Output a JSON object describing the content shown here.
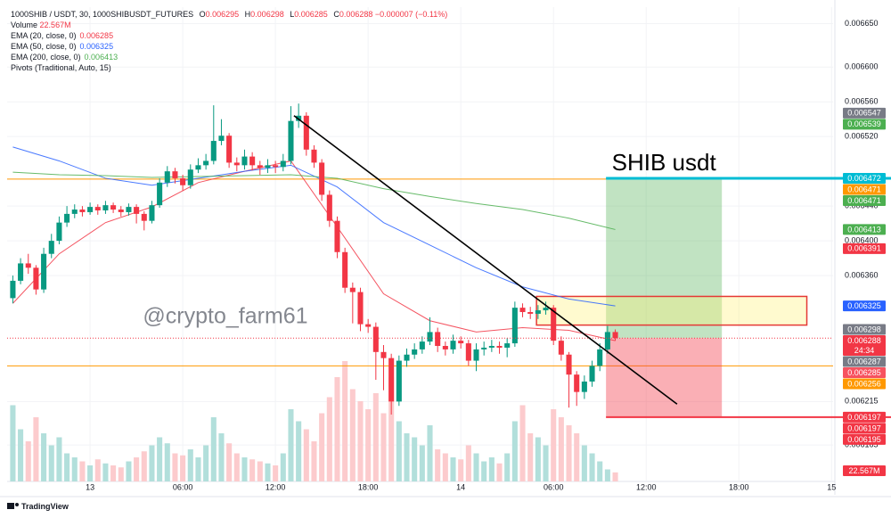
{
  "chart_data": {
    "type": "candlestick",
    "title": "1000SHIB / USDT, 30, 1000SHIBUSDT_FUTURES",
    "ohlc_keys": [
      "O",
      "H",
      "L",
      "C"
    ],
    "change": "−0.000007 (−0.11%)",
    "x": [
      -5,
      -4.5,
      -4,
      -3.5,
      -3,
      -2.5,
      -2,
      -1.5,
      -1,
      -0.5,
      0,
      0.5,
      1,
      1.5,
      2,
      2.5,
      3,
      3.5,
      4,
      4.5,
      5,
      5.5,
      6,
      6.5,
      7,
      7.5,
      8,
      8.5,
      9,
      9.5,
      10,
      10.5,
      11,
      11.5,
      12,
      12.5,
      13,
      13.5,
      14,
      14.5,
      15,
      15.5,
      16,
      16.5,
      17,
      17.5,
      18,
      18.5,
      19,
      19.5,
      20,
      20.5,
      21,
      21.5,
      22,
      22.5,
      23,
      23.5,
      24,
      24.5,
      25,
      25.5,
      26,
      26.5,
      27,
      27.5,
      28,
      28.5,
      29,
      29.5,
      30,
      30.5,
      31,
      31.5,
      32,
      32.5,
      33,
      33.5,
      34
    ],
    "open": [
      0.006334,
      0.006354,
      0.006374,
      0.006369,
      0.006344,
      0.006385,
      0.0064,
      0.006421,
      0.006431,
      0.006436,
      0.006433,
      0.006439,
      0.006435,
      0.006441,
      0.006436,
      0.006433,
      0.006439,
      0.006431,
      0.006423,
      0.006441,
      0.006467,
      0.00648,
      0.006472,
      0.006464,
      0.006482,
      0.006487,
      0.006492,
      0.006515,
      0.006521,
      0.00649,
      0.006487,
      0.006497,
      0.006487,
      0.006484,
      0.006487,
      0.006485,
      0.006492,
      0.006538,
      0.006544,
      0.006505,
      0.00649,
      0.006453,
      0.006423,
      0.006387,
      0.006346,
      0.006341,
      0.006304,
      0.006301,
      0.006272,
      0.006265,
      0.006215,
      0.006262,
      0.006269,
      0.006275,
      0.006284,
      0.006295,
      0.006279,
      0.006275,
      0.006285,
      0.006282,
      0.006262,
      0.006275,
      0.006277,
      0.006279,
      0.006277,
      0.006282,
      0.006323,
      0.006318,
      0.006316,
      0.00632,
      0.006323,
      0.006285,
      0.006269,
      0.006246,
      0.006226,
      0.006238,
      0.006256,
      0.006275,
      0.006295
    ],
    "high": [
      0.00636,
      0.00638,
      0.006385,
      0.006372,
      0.006392,
      0.006408,
      0.006428,
      0.00644,
      0.006442,
      0.00644,
      0.006444,
      0.006442,
      0.006446,
      0.006444,
      0.00644,
      0.006443,
      0.006442,
      0.006434,
      0.006446,
      0.006472,
      0.006486,
      0.006484,
      0.006476,
      0.006488,
      0.006495,
      0.0065,
      0.006556,
      0.00654,
      0.006524,
      0.006496,
      0.006505,
      0.006502,
      0.006492,
      0.006494,
      0.006492,
      0.0065,
      0.006555,
      0.006558,
      0.006548,
      0.00651,
      0.006494,
      0.006458,
      0.006428,
      0.006392,
      0.006352,
      0.006346,
      0.00631,
      0.006306,
      0.00628,
      0.00627,
      0.006268,
      0.006276,
      0.006282,
      0.00629,
      0.006312,
      0.0063,
      0.006284,
      0.006292,
      0.00629,
      0.006286,
      0.006282,
      0.006284,
      0.006286,
      0.006284,
      0.006288,
      0.00633,
      0.006328,
      0.006324,
      0.006326,
      0.00633,
      0.006326,
      0.00629,
      0.006272,
      0.00625,
      0.006245,
      0.006262,
      0.006282,
      0.006302,
      0.006298
    ],
    "low": [
      0.006328,
      0.00635,
      0.006362,
      0.006338,
      0.00634,
      0.00638,
      0.006396,
      0.006416,
      0.006426,
      0.006428,
      0.00643,
      0.00643,
      0.006431,
      0.006432,
      0.006428,
      0.006429,
      0.00642,
      0.006412,
      0.00642,
      0.006438,
      0.006462,
      0.006466,
      0.006458,
      0.00646,
      0.006478,
      0.006482,
      0.006488,
      0.00651,
      0.006484,
      0.00648,
      0.006482,
      0.006481,
      0.006476,
      0.006478,
      0.006478,
      0.00648,
      0.006488,
      0.00653,
      0.006498,
      0.006484,
      0.006446,
      0.006416,
      0.00638,
      0.00634,
      0.006305,
      0.006296,
      0.006294,
      0.00624,
      0.006228,
      0.0062,
      0.00621,
      0.006255,
      0.006264,
      0.00627,
      0.00628,
      0.006272,
      0.006268,
      0.00627,
      0.006276,
      0.006256,
      0.00625,
      0.006268,
      0.006272,
      0.00627,
      0.006266,
      0.006278,
      0.006312,
      0.00631,
      0.00631,
      0.006315,
      0.00628,
      0.006262,
      0.006208,
      0.00621,
      0.006218,
      0.006232,
      0.00625,
      0.00627,
      0.006285
    ],
    "close": [
      0.006354,
      0.006374,
      0.006369,
      0.006344,
      0.006385,
      0.0064,
      0.006421,
      0.006431,
      0.006436,
      0.006433,
      0.006439,
      0.006435,
      0.006441,
      0.006436,
      0.006433,
      0.006439,
      0.006431,
      0.006423,
      0.006441,
      0.006467,
      0.00648,
      0.006472,
      0.006464,
      0.006482,
      0.006487,
      0.006492,
      0.006515,
      0.006521,
      0.00649,
      0.006487,
      0.006497,
      0.006487,
      0.006484,
      0.006487,
      0.006485,
      0.006492,
      0.006538,
      0.006544,
      0.006505,
      0.00649,
      0.006453,
      0.006423,
      0.006387,
      0.006346,
      0.006341,
      0.006304,
      0.006301,
      0.006272,
      0.006265,
      0.006215,
      0.006262,
      0.006269,
      0.006275,
      0.006284,
      0.006295,
      0.006279,
      0.006275,
      0.006285,
      0.006282,
      0.006262,
      0.006275,
      0.006277,
      0.006279,
      0.006277,
      0.006282,
      0.006323,
      0.006318,
      0.006316,
      0.00632,
      0.006323,
      0.006285,
      0.006269,
      0.006246,
      0.006226,
      0.006238,
      0.006256,
      0.006275,
      0.006295,
      0.006288
    ],
    "up_color": "#089981",
    "down_color": "#f23645",
    "volume": {
      "name": "Volume",
      "values": [
        190,
        130,
        100,
        160,
        120,
        90,
        110,
        70,
        60,
        50,
        40,
        55,
        45,
        40,
        35,
        50,
        60,
        75,
        90,
        110,
        95,
        70,
        65,
        80,
        60,
        90,
        160,
        120,
        95,
        70,
        60,
        55,
        50,
        45,
        40,
        70,
        180,
        150,
        130,
        100,
        170,
        210,
        260,
        300,
        230,
        200,
        180,
        220,
        170,
        260,
        150,
        120,
        110,
        90,
        140,
        80,
        70,
        60,
        55,
        90,
        70,
        50,
        60,
        45,
        70,
        150,
        190,
        120,
        110,
        90,
        180,
        160,
        140,
        120,
        90,
        70,
        50,
        30,
        22.567
      ],
      "value_label": "22.567M",
      "vlim": [
        0,
        1182
      ],
      "up_color": "#b2dfdb",
      "down_color": "#fccbcd"
    },
    "series": [
      {
        "name": "EMA (20, close, 0)",
        "color": "#f23645",
        "x": [
          -5,
          -2,
          1,
          4,
          7,
          10,
          13,
          16,
          19,
          22,
          25,
          28,
          31,
          34
        ],
        "values": [
          0.006328,
          0.006385,
          0.006421,
          0.006439,
          0.006467,
          0.00648,
          0.006492,
          0.006416,
          0.006339,
          0.006308,
          0.006295,
          0.0063,
          0.006297,
          0.006285
        ]
      },
      {
        "name": "EMA (50, close, 0)",
        "color": "#2962ff",
        "x": [
          -5,
          -2,
          1,
          4,
          7,
          10,
          13,
          16,
          19,
          22,
          25,
          28,
          31,
          34
        ],
        "values": [
          0.006508,
          0.006492,
          0.006472,
          0.006464,
          0.006472,
          0.00648,
          0.006487,
          0.006462,
          0.006421,
          0.006395,
          0.006369,
          0.006347,
          0.006333,
          0.006325
        ]
      },
      {
        "name": "EMA (200, close, 0)",
        "color": "#4caf50",
        "x": [
          -5,
          -2,
          1,
          4,
          7,
          10,
          13,
          16,
          19,
          22,
          25,
          28,
          31,
          34
        ],
        "values": [
          0.006479,
          0.006476,
          0.006475,
          0.006473,
          0.006474,
          0.006475,
          0.006476,
          0.006472,
          0.00646,
          0.006451,
          0.006443,
          0.006436,
          0.006426,
          0.006413
        ]
      }
    ],
    "pivots": {
      "name": "Pivots (Traditional, Auto, 15)",
      "levels": [
        0.006471,
        0.006256
      ],
      "color": "#ff9800"
    },
    "xlim": [
      -5.37,
      48.1
    ],
    "ylim": [
      0.006123,
      0.006669
    ],
    "xticks": [
      {
        "value": 0,
        "label": "13"
      },
      {
        "value": 6,
        "label": "06:00"
      },
      {
        "value": 12,
        "label": "12:00"
      },
      {
        "value": 18,
        "label": "18:00"
      },
      {
        "value": 24,
        "label": "14"
      },
      {
        "value": 30,
        "label": "06:00"
      },
      {
        "value": 36,
        "label": "12:00"
      },
      {
        "value": 42,
        "label": "18:00"
      },
      {
        "value": 48,
        "label": "15"
      }
    ],
    "yticks": [
      {
        "value": 0.00665,
        "label": "0.006650"
      },
      {
        "value": 0.0066,
        "label": "0.006600"
      },
      {
        "value": 0.00656,
        "label": "0.006560"
      },
      {
        "value": 0.00652,
        "label": "0.006520"
      },
      {
        "value": 0.00644,
        "label": "0.006440"
      },
      {
        "value": 0.0064,
        "label": "0.006400"
      },
      {
        "value": 0.00636,
        "label": "0.006360"
      },
      {
        "value": 0.006215,
        "label": "0.006215"
      },
      {
        "value": 0.006165,
        "label": "0.006165"
      }
    ],
    "grid": true,
    "price_labels": [
      {
        "value": 0.006547,
        "color": "#787b86"
      },
      {
        "value": 0.006539,
        "color": "#4caf50"
      },
      {
        "value": 0.006472,
        "color": "#00bcd4"
      },
      {
        "value": 0.006471,
        "color": "#ff9800"
      },
      {
        "value": 0.006471,
        "color": "#4caf50"
      },
      {
        "value": 0.006413,
        "color": "#4caf50"
      },
      {
        "value": 0.006391,
        "color": "#f23645"
      },
      {
        "value": 0.006325,
        "color": "#2962ff"
      },
      {
        "value": 0.006298,
        "color": "#787b86"
      },
      {
        "value": 0.006288,
        "color": "#f23645",
        "sublabel": "24:34"
      },
      {
        "value": 0.006287,
        "color": "#787b86"
      },
      {
        "value": 0.006285,
        "color": "#f7525f"
      },
      {
        "value": 0.006256,
        "color": "#ff9800"
      },
      {
        "value": 0.006197,
        "color": "#f23645"
      },
      {
        "value": 0.006197,
        "color": "#f23645"
      },
      {
        "value": 0.006195,
        "color": "#f23645"
      }
    ],
    "trend_line": {
      "x": [
        13.2,
        38
      ],
      "values": [
        0.006544,
        0.006212
      ],
      "color": "#000000"
    },
    "zone": {
      "x": [
        28.9,
        46.4
      ],
      "values": [
        0.006303,
        0.006336
      ]
    },
    "position": {
      "x": [
        33.4,
        40.9
      ],
      "entry": 0.006288,
      "target": 0.006472,
      "stop": 0.006197,
      "label": "SHIB usdt"
    },
    "watermark": "@crypto_farm61",
    "brand": "TradingView"
  }
}
